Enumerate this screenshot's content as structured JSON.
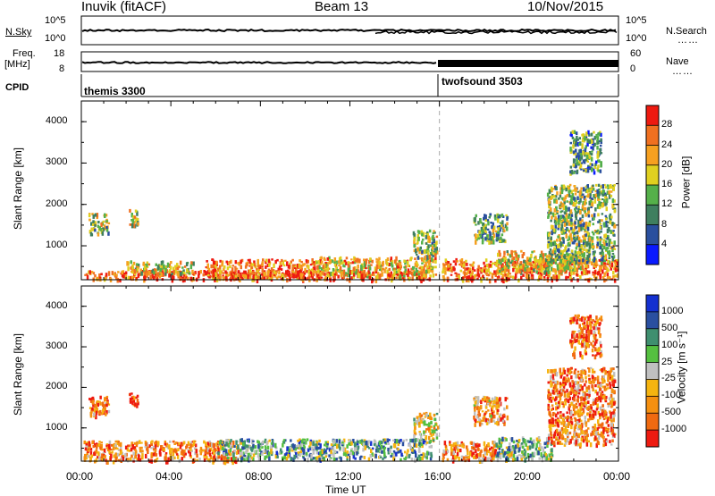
{
  "header": {
    "station": "Inuvik (fitACF)",
    "beam": "Beam 13",
    "date": "10/Nov/2015"
  },
  "strip_nsky": {
    "left_label": "N.Sky",
    "right_label": "N.Search",
    "left_ticks": [
      "10^5",
      "10^0"
    ],
    "right_ticks": [
      "10^5",
      "10^0"
    ]
  },
  "strip_freq": {
    "left_label_1": "Freq.",
    "left_label_2": "[MHz]",
    "right_label": "Nave",
    "left_ticks": [
      "18",
      "8"
    ],
    "right_ticks": [
      "60",
      "0"
    ]
  },
  "cpid": {
    "label": "CPID",
    "segments": [
      {
        "name": "themis 3300",
        "start_h": 0,
        "end_h": 16
      },
      {
        "name": "twofsound 3503",
        "start_h": 16,
        "end_h": 24
      }
    ]
  },
  "colors": {
    "power": [
      "#0a1aff",
      "#2a4f9e",
      "#3f7f5f",
      "#55b04a",
      "#e0d020",
      "#f6a020",
      "#f07020",
      "#ee1a10"
    ],
    "velocity": [
      "#ee1a10",
      "#f06a10",
      "#f59010",
      "#f5b410",
      "#c0c0c0",
      "#55c040",
      "#3f8f6f",
      "#2a4fa0",
      "#1430d0"
    ]
  },
  "chart_data": [
    {
      "type": "heatmap",
      "panel": "power",
      "ylabel": "Slant Range [km]",
      "xlabel": "Time UT",
      "x_ticks": [
        "00:00",
        "04:00",
        "08:00",
        "12:00",
        "16:00",
        "20:00",
        "00:00"
      ],
      "y_ticks": [
        "1000",
        "2000",
        "3000",
        "4000"
      ],
      "ylim": [
        180,
        4500
      ],
      "xlim_hours": [
        0,
        24
      ],
      "colorbar_label": "Power [dB]",
      "colorbar_ticks": [
        "28",
        "24",
        "20",
        "16",
        "12",
        "8",
        "4"
      ],
      "colorbar_range": [
        0,
        32
      ],
      "regions": [
        {
          "t": [
            0.1,
            15.6
          ],
          "r": [
            200,
            420
          ],
          "level": 0.85
        },
        {
          "t": [
            2.0,
            5.0
          ],
          "r": [
            350,
            650
          ],
          "level": 0.6
        },
        {
          "t": [
            5.5,
            10.5
          ],
          "r": [
            250,
            700
          ],
          "level": 0.8
        },
        {
          "t": [
            10.5,
            15.8
          ],
          "r": [
            300,
            750
          ],
          "level": 0.65
        },
        {
          "t": [
            0.3,
            1.2
          ],
          "r": [
            1300,
            1800
          ],
          "level": 0.5
        },
        {
          "t": [
            2.1,
            2.5
          ],
          "r": [
            1500,
            1900
          ],
          "level": 0.55
        },
        {
          "t": [
            14.8,
            15.9
          ],
          "r": [
            700,
            1400
          ],
          "level": 0.5
        },
        {
          "t": [
            16.1,
            24.0
          ],
          "r": [
            200,
            700
          ],
          "level": 0.8
        },
        {
          "t": [
            18.5,
            22.5
          ],
          "r": [
            400,
            900
          ],
          "level": 0.6
        },
        {
          "t": [
            20.8,
            23.8
          ],
          "r": [
            600,
            2500
          ],
          "level": 0.45
        },
        {
          "t": [
            17.5,
            19.0
          ],
          "r": [
            1100,
            1800
          ],
          "level": 0.4
        },
        {
          "t": [
            21.8,
            23.2
          ],
          "r": [
            2800,
            3800
          ],
          "level": 0.35
        }
      ]
    },
    {
      "type": "heatmap",
      "panel": "velocity",
      "ylabel": "Slant Range [km]",
      "xlabel": "Time UT",
      "x_ticks": [
        "00:00",
        "04:00",
        "08:00",
        "12:00",
        "16:00",
        "20:00",
        "00:00"
      ],
      "y_ticks": [
        "1000",
        "2000",
        "3000",
        "4000"
      ],
      "ylim": [
        180,
        4500
      ],
      "xlim_hours": [
        0,
        24
      ],
      "colorbar_label": "Velocity [m s⁻¹]",
      "colorbar_ticks": [
        "1000",
        "500",
        "100",
        "25",
        "-25",
        "-100",
        "-500",
        "-1000"
      ],
      "colorbar_range": [
        -1200,
        1200
      ],
      "regions": [
        {
          "t": [
            0.1,
            7.0
          ],
          "r": [
            200,
            700
          ],
          "level": 0.25
        },
        {
          "t": [
            6.0,
            15.6
          ],
          "r": [
            250,
            750
          ],
          "level": 0.65
        },
        {
          "t": [
            0.3,
            1.2
          ],
          "r": [
            1300,
            1800
          ],
          "level": 0.2
        },
        {
          "t": [
            2.1,
            2.5
          ],
          "r": [
            1500,
            1900
          ],
          "level": 0.2
        },
        {
          "t": [
            14.8,
            15.9
          ],
          "r": [
            700,
            1400
          ],
          "level": 0.45
        },
        {
          "t": [
            16.1,
            18.5
          ],
          "r": [
            200,
            700
          ],
          "level": 0.25
        },
        {
          "t": [
            18.5,
            21.0
          ],
          "r": [
            250,
            800
          ],
          "level": 0.6
        },
        {
          "t": [
            20.8,
            23.8
          ],
          "r": [
            600,
            2500
          ],
          "level": 0.25
        },
        {
          "t": [
            17.5,
            19.0
          ],
          "r": [
            1100,
            1800
          ],
          "level": 0.3
        },
        {
          "t": [
            21.8,
            23.2
          ],
          "r": [
            2800,
            3800
          ],
          "level": 0.2
        }
      ]
    }
  ]
}
